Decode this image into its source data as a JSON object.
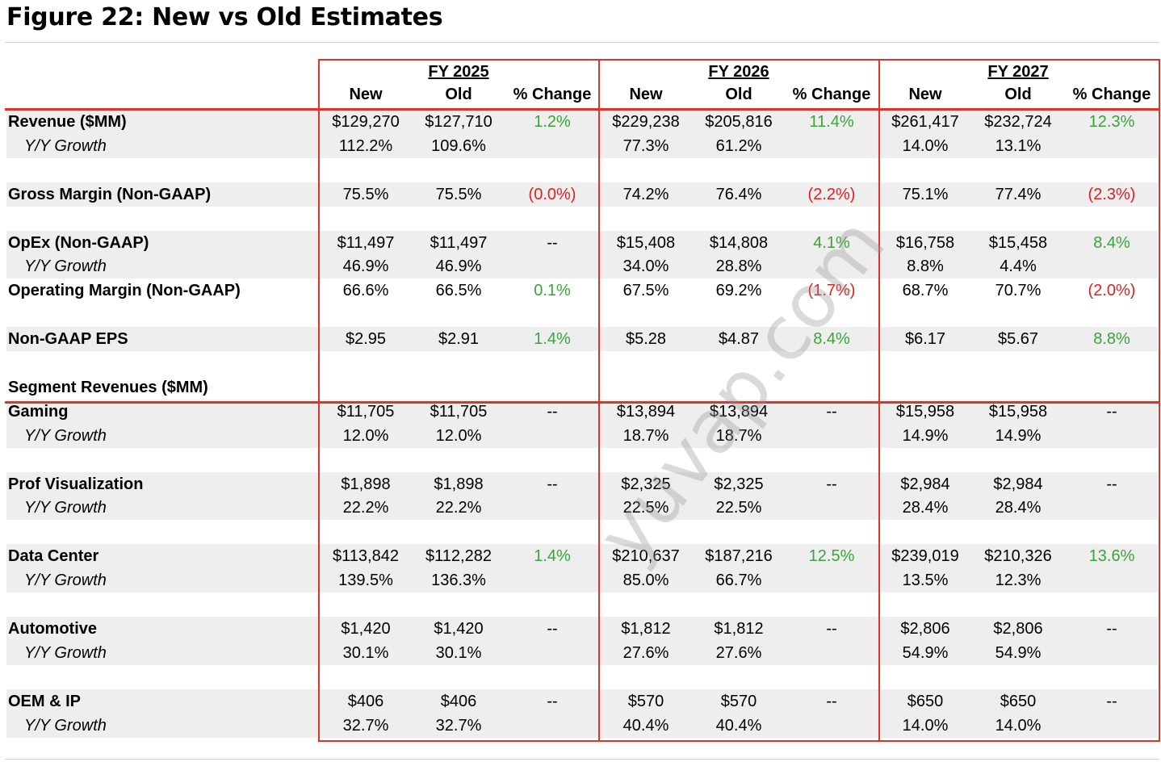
{
  "title": "Figure 22: New vs Old Estimates",
  "watermark": "yuvap.com",
  "colors": {
    "accent_border": "#e0342a",
    "positive": "#3aa43a",
    "negative": "#e02020",
    "row_shade": "#eeeeee"
  },
  "fiscal_years": [
    "FY 2025",
    "FY 2026",
    "FY 2027"
  ],
  "column_headers": [
    "New",
    "Old",
    "% Change"
  ],
  "rows": [
    {
      "label": "Revenue ($MM)",
      "style": "bold",
      "shade": true,
      "values": [
        "$129,270",
        "$127,710",
        "1.2%",
        "$229,238",
        "$205,816",
        "11.4%",
        "$261,417",
        "$232,724",
        "12.3%"
      ],
      "tones": [
        "",
        "",
        "pos",
        "",
        "",
        "pos",
        "",
        "",
        "pos"
      ]
    },
    {
      "label": "Y/Y Growth",
      "style": "ital",
      "shade": true,
      "values": [
        "112.2%",
        "109.6%",
        "",
        "77.3%",
        "61.2%",
        "",
        "14.0%",
        "13.1%",
        ""
      ],
      "tones": [
        "",
        "",
        "",
        "",
        "",
        "",
        "",
        "",
        ""
      ]
    },
    {
      "label": "",
      "style": "blank",
      "shade": false,
      "values": [
        "",
        "",
        "",
        "",
        "",
        "",
        "",
        "",
        ""
      ],
      "tones": [
        "",
        "",
        "",
        "",
        "",
        "",
        "",
        "",
        ""
      ]
    },
    {
      "label": "Gross Margin (Non-GAAP)",
      "style": "bold",
      "shade": true,
      "values": [
        "75.5%",
        "75.5%",
        "(0.0%)",
        "74.2%",
        "76.4%",
        "(2.2%)",
        "75.1%",
        "77.4%",
        "(2.3%)"
      ],
      "tones": [
        "",
        "",
        "neg",
        "",
        "",
        "neg",
        "",
        "",
        "neg"
      ]
    },
    {
      "label": "",
      "style": "blank",
      "shade": false,
      "values": [
        "",
        "",
        "",
        "",
        "",
        "",
        "",
        "",
        ""
      ],
      "tones": [
        "",
        "",
        "",
        "",
        "",
        "",
        "",
        "",
        ""
      ]
    },
    {
      "label": "OpEx (Non-GAAP)",
      "style": "bold",
      "shade": true,
      "values": [
        "$11,497",
        "$11,497",
        "--",
        "$15,408",
        "$14,808",
        "4.1%",
        "$16,758",
        "$15,458",
        "8.4%"
      ],
      "tones": [
        "",
        "",
        "neu",
        "",
        "",
        "pos",
        "",
        "",
        "pos"
      ]
    },
    {
      "label": "Y/Y Growth",
      "style": "ital",
      "shade": true,
      "values": [
        "46.9%",
        "46.9%",
        "",
        "34.0%",
        "28.8%",
        "",
        "8.8%",
        "4.4%",
        ""
      ],
      "tones": [
        "",
        "",
        "",
        "",
        "",
        "",
        "",
        "",
        ""
      ]
    },
    {
      "label": "Operating Margin (Non-GAAP)",
      "style": "bold",
      "shade": false,
      "values": [
        "66.6%",
        "66.5%",
        "0.1%",
        "67.5%",
        "69.2%",
        "(1.7%)",
        "68.7%",
        "70.7%",
        "(2.0%)"
      ],
      "tones": [
        "",
        "",
        "pos",
        "",
        "",
        "neg",
        "",
        "",
        "neg"
      ]
    },
    {
      "label": "",
      "style": "blank",
      "shade": false,
      "values": [
        "",
        "",
        "",
        "",
        "",
        "",
        "",
        "",
        ""
      ],
      "tones": [
        "",
        "",
        "",
        "",
        "",
        "",
        "",
        "",
        ""
      ]
    },
    {
      "label": "Non-GAAP EPS",
      "style": "bold",
      "shade": true,
      "values": [
        "$2.95",
        "$2.91",
        "1.4%",
        "$5.28",
        "$4.87",
        "8.4%",
        "$6.17",
        "$5.67",
        "8.8%"
      ],
      "tones": [
        "",
        "",
        "pos",
        "",
        "",
        "pos",
        "",
        "",
        "pos"
      ]
    },
    {
      "label": "",
      "style": "blank",
      "shade": false,
      "values": [
        "",
        "",
        "",
        "",
        "",
        "",
        "",
        "",
        ""
      ],
      "tones": [
        "",
        "",
        "",
        "",
        "",
        "",
        "",
        "",
        ""
      ]
    },
    {
      "label": "Segment Revenues ($MM)",
      "style": "bold",
      "shade": false,
      "values": [
        "",
        "",
        "",
        "",
        "",
        "",
        "",
        "",
        ""
      ],
      "tones": [
        "",
        "",
        "",
        "",
        "",
        "",
        "",
        "",
        ""
      ]
    },
    {
      "label": "Gaming",
      "style": "bold",
      "shade": true,
      "values": [
        "$11,705",
        "$11,705",
        "--",
        "$13,894",
        "$13,894",
        "--",
        "$15,958",
        "$15,958",
        "--"
      ],
      "tones": [
        "",
        "",
        "neu",
        "",
        "",
        "neu",
        "",
        "",
        "neu"
      ]
    },
    {
      "label": "Y/Y Growth",
      "style": "ital",
      "shade": true,
      "values": [
        "12.0%",
        "12.0%",
        "",
        "18.7%",
        "18.7%",
        "",
        "14.9%",
        "14.9%",
        ""
      ],
      "tones": [
        "",
        "",
        "",
        "",
        "",
        "",
        "",
        "",
        ""
      ]
    },
    {
      "label": "",
      "style": "blank",
      "shade": false,
      "values": [
        "",
        "",
        "",
        "",
        "",
        "",
        "",
        "",
        ""
      ],
      "tones": [
        "",
        "",
        "",
        "",
        "",
        "",
        "",
        "",
        ""
      ]
    },
    {
      "label": "Prof Visualization",
      "style": "bold",
      "shade": true,
      "values": [
        "$1,898",
        "$1,898",
        "--",
        "$2,325",
        "$2,325",
        "--",
        "$2,984",
        "$2,984",
        "--"
      ],
      "tones": [
        "",
        "",
        "neu",
        "",
        "",
        "neu",
        "",
        "",
        "neu"
      ]
    },
    {
      "label": "Y/Y Growth",
      "style": "ital",
      "shade": true,
      "values": [
        "22.2%",
        "22.2%",
        "",
        "22.5%",
        "22.5%",
        "",
        "28.4%",
        "28.4%",
        ""
      ],
      "tones": [
        "",
        "",
        "",
        "",
        "",
        "",
        "",
        "",
        ""
      ]
    },
    {
      "label": "",
      "style": "blank",
      "shade": false,
      "values": [
        "",
        "",
        "",
        "",
        "",
        "",
        "",
        "",
        ""
      ],
      "tones": [
        "",
        "",
        "",
        "",
        "",
        "",
        "",
        "",
        ""
      ]
    },
    {
      "label": "Data Center",
      "style": "bold",
      "shade": true,
      "values": [
        "$113,842",
        "$112,282",
        "1.4%",
        "$210,637",
        "$187,216",
        "12.5%",
        "$239,019",
        "$210,326",
        "13.6%"
      ],
      "tones": [
        "",
        "",
        "pos",
        "",
        "",
        "pos",
        "",
        "",
        "pos"
      ]
    },
    {
      "label": "Y/Y Growth",
      "style": "ital",
      "shade": true,
      "values": [
        "139.5%",
        "136.3%",
        "",
        "85.0%",
        "66.7%",
        "",
        "13.5%",
        "12.3%",
        ""
      ],
      "tones": [
        "",
        "",
        "",
        "",
        "",
        "",
        "",
        "",
        ""
      ]
    },
    {
      "label": "",
      "style": "blank",
      "shade": false,
      "values": [
        "",
        "",
        "",
        "",
        "",
        "",
        "",
        "",
        ""
      ],
      "tones": [
        "",
        "",
        "",
        "",
        "",
        "",
        "",
        "",
        ""
      ]
    },
    {
      "label": "Automotive",
      "style": "bold",
      "shade": true,
      "values": [
        "$1,420",
        "$1,420",
        "--",
        "$1,812",
        "$1,812",
        "--",
        "$2,806",
        "$2,806",
        "--"
      ],
      "tones": [
        "",
        "",
        "neu",
        "",
        "",
        "neu",
        "",
        "",
        "neu"
      ]
    },
    {
      "label": "Y/Y Growth",
      "style": "ital",
      "shade": true,
      "values": [
        "30.1%",
        "30.1%",
        "",
        "27.6%",
        "27.6%",
        "",
        "54.9%",
        "54.9%",
        ""
      ],
      "tones": [
        "",
        "",
        "",
        "",
        "",
        "",
        "",
        "",
        ""
      ]
    },
    {
      "label": "",
      "style": "blank",
      "shade": false,
      "values": [
        "",
        "",
        "",
        "",
        "",
        "",
        "",
        "",
        ""
      ],
      "tones": [
        "",
        "",
        "",
        "",
        "",
        "",
        "",
        "",
        ""
      ]
    },
    {
      "label": "OEM & IP",
      "style": "bold",
      "shade": true,
      "values": [
        "$406",
        "$406",
        "--",
        "$570",
        "$570",
        "--",
        "$650",
        "$650",
        "--"
      ],
      "tones": [
        "",
        "",
        "neu",
        "",
        "",
        "neu",
        "",
        "",
        "neu"
      ]
    },
    {
      "label": "Y/Y Growth",
      "style": "ital",
      "shade": true,
      "values": [
        "32.7%",
        "32.7%",
        "",
        "40.4%",
        "40.4%",
        "",
        "14.0%",
        "14.0%",
        ""
      ],
      "tones": [
        "",
        "",
        "",
        "",
        "",
        "",
        "",
        "",
        ""
      ]
    }
  ]
}
